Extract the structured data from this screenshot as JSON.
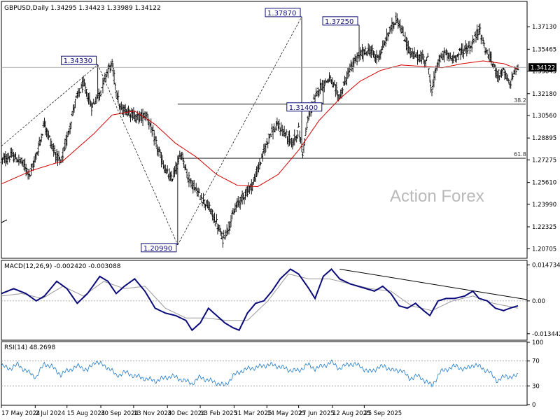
{
  "chart_data": [
    {
      "type": "ohlc",
      "title": "GBPUSD,Daily  1.34295 1.34423 1.33989 1.34122",
      "watermark": "Action Forex",
      "ylim": [
        1.201,
        1.389
      ],
      "y_ticks": [
        "1.37130",
        "1.35465",
        "1.33845",
        "1.32180",
        "1.30560",
        "1.28895",
        "1.27275",
        "1.25610",
        "1.23990",
        "1.22325",
        "1.20705"
      ],
      "current_price": "1.34122",
      "x_dates": [
        "17 May 2024",
        "2 Jul 2024",
        "15 Aug 2024",
        "30 Sep 2024",
        "13 Nov 2024",
        "30 Dec 2024",
        "13 Feb 2025",
        "31 Mar 2025",
        "14 May 2025",
        "27 Jun 2025",
        "12 Aug 2025",
        "25 Sep 2025"
      ],
      "swing_labels": [
        {
          "date": "2024-09-26",
          "text": "1.34330"
        },
        {
          "date": "2025-01-13",
          "text": "1.20990"
        },
        {
          "date": "2025-07-01",
          "text": "1.37870"
        },
        {
          "date": "2025-07-31",
          "text": "1.31400"
        },
        {
          "date": "2025-09-17",
          "text": "1.37250"
        }
      ],
      "fib_levels": [
        {
          "label": "38.2",
          "value": 1.314
        },
        {
          "label": "61.8",
          "value": 1.274
        }
      ],
      "series": [
        {
          "name": "price",
          "color": "#000000",
          "points": [
            [
              0,
              1.272
            ],
            [
              10,
              1.276
            ],
            [
              20,
              1.271
            ],
            [
              28,
              1.262
            ],
            [
              36,
              1.281
            ],
            [
              42,
              1.3
            ],
            [
              50,
              1.282
            ],
            [
              58,
              1.27
            ],
            [
              66,
              1.295
            ],
            [
              72,
              1.316
            ],
            [
              80,
              1.329
            ],
            [
              88,
              1.312
            ],
            [
              96,
              1.322
            ],
            [
              104,
              1.34
            ],
            [
              108,
              1.343
            ],
            [
              112,
              1.325
            ],
            [
              116,
              1.31
            ],
            [
              124,
              1.309
            ],
            [
              132,
              1.304
            ],
            [
              142,
              1.306
            ],
            [
              152,
              1.282
            ],
            [
              160,
              1.265
            ],
            [
              166,
              1.258
            ],
            [
              176,
              1.278
            ],
            [
              182,
              1.26
            ],
            [
              192,
              1.248
            ],
            [
              202,
              1.238
            ],
            [
              210,
              1.226
            ],
            [
              216,
              1.214
            ],
            [
              222,
              1.224
            ],
            [
              230,
              1.24
            ],
            [
              238,
              1.248
            ],
            [
              246,
              1.256
            ],
            [
              254,
              1.274
            ],
            [
              262,
              1.292
            ],
            [
              270,
              1.298
            ],
            [
              278,
              1.291
            ],
            [
              284,
              1.285
            ],
            [
              290,
              1.295
            ],
            [
              294,
              1.278
            ],
            [
              300,
              1.306
            ],
            [
              310,
              1.326
            ],
            [
              320,
              1.333
            ],
            [
              330,
              1.319
            ],
            [
              340,
              1.34
            ],
            [
              350,
              1.351
            ],
            [
              360,
              1.354
            ],
            [
              366,
              1.348
            ],
            [
              372,
              1.355
            ],
            [
              378,
              1.367
            ],
            [
              386,
              1.378
            ],
            [
              392,
              1.365
            ],
            [
              400,
              1.351
            ],
            [
              410,
              1.348
            ],
            [
              416,
              1.347
            ],
            [
              420,
              1.322
            ],
            [
              424,
              1.341
            ],
            [
              432,
              1.352
            ],
            [
              440,
              1.347
            ],
            [
              450,
              1.354
            ],
            [
              458,
              1.356
            ],
            [
              466,
              1.37
            ],
            [
              472,
              1.355
            ],
            [
              478,
              1.346
            ],
            [
              484,
              1.336
            ],
            [
              490,
              1.338
            ],
            [
              496,
              1.328
            ],
            [
              500,
              1.338
            ],
            [
              504,
              1.341
            ]
          ]
        },
        {
          "name": "MA",
          "color": "#d40000",
          "points": [
            [
              0,
              1.255
            ],
            [
              30,
              1.265
            ],
            [
              60,
              1.272
            ],
            [
              90,
              1.292
            ],
            [
              108,
              1.306
            ],
            [
              130,
              1.309
            ],
            [
              150,
              1.299
            ],
            [
              170,
              1.285
            ],
            [
              190,
              1.275
            ],
            [
              210,
              1.262
            ],
            [
              230,
              1.254
            ],
            [
              250,
              1.253
            ],
            [
              270,
              1.262
            ],
            [
              290,
              1.28
            ],
            [
              310,
              1.302
            ],
            [
              330,
              1.318
            ],
            [
              350,
              1.331
            ],
            [
              370,
              1.339
            ],
            [
              390,
              1.343
            ],
            [
              410,
              1.342
            ],
            [
              430,
              1.341
            ],
            [
              450,
              1.344
            ],
            [
              470,
              1.346
            ],
            [
              490,
              1.344
            ],
            [
              504,
              1.34
            ]
          ]
        }
      ]
    },
    {
      "type": "line",
      "title": "MACD(12,26,9) -0.002420 -0.003088",
      "ylim": [
        -0.0158,
        0.016
      ],
      "y_ticks": [
        "0.014734",
        "0.00",
        "-0.013442"
      ],
      "series": [
        {
          "name": "MACD",
          "color": "#0a0a7a",
          "points": [
            [
              0,
              0.003
            ],
            [
              12,
              0.005
            ],
            [
              24,
              0.003
            ],
            [
              34,
              0.0
            ],
            [
              42,
              0.002
            ],
            [
              54,
              0.008
            ],
            [
              64,
              0.005
            ],
            [
              74,
              -0.001
            ],
            [
              84,
              0.003
            ],
            [
              96,
              0.01
            ],
            [
              104,
              0.008
            ],
            [
              112,
              0.003
            ],
            [
              120,
              0.006
            ],
            [
              130,
              0.009
            ],
            [
              140,
              0.004
            ],
            [
              150,
              -0.003
            ],
            [
              160,
              -0.005
            ],
            [
              170,
              -0.006
            ],
            [
              180,
              -0.008
            ],
            [
              186,
              -0.012
            ],
            [
              194,
              -0.009
            ],
            [
              202,
              -0.003
            ],
            [
              210,
              -0.006
            ],
            [
              218,
              -0.009
            ],
            [
              226,
              -0.011
            ],
            [
              232,
              -0.012
            ],
            [
              240,
              -0.005
            ],
            [
              248,
              -0.001
            ],
            [
              256,
              0.0
            ],
            [
              264,
              0.004
            ],
            [
              272,
              0.009
            ],
            [
              282,
              0.013
            ],
            [
              290,
              0.011
            ],
            [
              300,
              0.005
            ],
            [
              306,
              0.001
            ],
            [
              314,
              0.01
            ],
            [
              322,
              0.013
            ],
            [
              330,
              0.009
            ],
            [
              340,
              0.007
            ],
            [
              348,
              0.006
            ],
            [
              356,
              0.005
            ],
            [
              364,
              0.004
            ],
            [
              372,
              0.006
            ],
            [
              380,
              0.003
            ],
            [
              388,
              -0.002
            ],
            [
              396,
              -0.003
            ],
            [
              404,
              -0.001
            ],
            [
              412,
              -0.004
            ],
            [
              418,
              -0.006
            ],
            [
              426,
              0.0
            ],
            [
              434,
              0.001
            ],
            [
              442,
              0.001
            ],
            [
              452,
              0.002
            ],
            [
              460,
              0.004
            ],
            [
              466,
              0.001
            ],
            [
              474,
              0.0
            ],
            [
              482,
              -0.003
            ],
            [
              490,
              -0.004
            ],
            [
              496,
              -0.003
            ],
            [
              504,
              -0.002
            ]
          ]
        },
        {
          "name": "Signal",
          "color": "#999999",
          "points": [
            [
              0,
              0.002
            ],
            [
              20,
              0.003
            ],
            [
              40,
              0.001
            ],
            [
              60,
              0.006
            ],
            [
              80,
              0.002
            ],
            [
              100,
              0.008
            ],
            [
              120,
              0.005
            ],
            [
              140,
              0.006
            ],
            [
              160,
              -0.003
            ],
            [
              180,
              -0.007
            ],
            [
              200,
              -0.007
            ],
            [
              220,
              -0.008
            ],
            [
              240,
              -0.008
            ],
            [
              260,
              0.0
            ],
            [
              280,
              0.011
            ],
            [
              300,
              0.009
            ],
            [
              320,
              0.009
            ],
            [
              340,
              0.007
            ],
            [
              360,
              0.005
            ],
            [
              380,
              0.004
            ],
            [
              400,
              -0.002
            ],
            [
              420,
              -0.004
            ],
            [
              440,
              0.0
            ],
            [
              460,
              0.002
            ],
            [
              480,
              -0.001
            ],
            [
              504,
              -0.003
            ]
          ]
        }
      ],
      "trendline": [
        [
          330,
          0.013
        ],
        [
          504,
          0.001
        ]
      ]
    },
    {
      "type": "line",
      "title": "RSI(14) 48.2698",
      "ylim": [
        0,
        100
      ],
      "y_ticks": [
        "100",
        "70",
        "30",
        "0"
      ],
      "y_tick_values": [
        100,
        70,
        30,
        0
      ],
      "levels": [
        70,
        30
      ],
      "series": [
        {
          "name": "RSI",
          "color": "#1e78c8",
          "points": [
            [
              0,
              62
            ],
            [
              8,
              58
            ],
            [
              16,
              64
            ],
            [
              26,
              52
            ],
            [
              34,
              44
            ],
            [
              42,
              66
            ],
            [
              50,
              60
            ],
            [
              58,
              48
            ],
            [
              66,
              56
            ],
            [
              76,
              62
            ],
            [
              84,
              55
            ],
            [
              92,
              70
            ],
            [
              100,
              62
            ],
            [
              106,
              58
            ],
            [
              112,
              46
            ],
            [
              120,
              52
            ],
            [
              130,
              46
            ],
            [
              140,
              42
            ],
            [
              150,
              38
            ],
            [
              158,
              42
            ],
            [
              166,
              46
            ],
            [
              176,
              40
            ],
            [
              186,
              34
            ],
            [
              194,
              44
            ],
            [
              204,
              38
            ],
            [
              212,
              34
            ],
            [
              218,
              30
            ],
            [
              226,
              46
            ],
            [
              234,
              54
            ],
            [
              242,
              58
            ],
            [
              250,
              60
            ],
            [
              260,
              64
            ],
            [
              270,
              62
            ],
            [
              280,
              56
            ],
            [
              290,
              54
            ],
            [
              298,
              64
            ],
            [
              306,
              58
            ],
            [
              314,
              62
            ],
            [
              322,
              68
            ],
            [
              330,
              58
            ],
            [
              340,
              66
            ],
            [
              350,
              62
            ],
            [
              358,
              52
            ],
            [
              366,
              58
            ],
            [
              374,
              62
            ],
            [
              382,
              54
            ],
            [
              390,
              56
            ],
            [
              398,
              42
            ],
            [
              406,
              46
            ],
            [
              414,
              38
            ],
            [
              420,
              30
            ],
            [
              428,
              52
            ],
            [
              436,
              58
            ],
            [
              444,
              62
            ],
            [
              452,
              56
            ],
            [
              460,
              64
            ],
            [
              468,
              60
            ],
            [
              476,
              52
            ],
            [
              484,
              38
            ],
            [
              492,
              46
            ],
            [
              500,
              44
            ],
            [
              504,
              48
            ]
          ]
        }
      ]
    }
  ]
}
